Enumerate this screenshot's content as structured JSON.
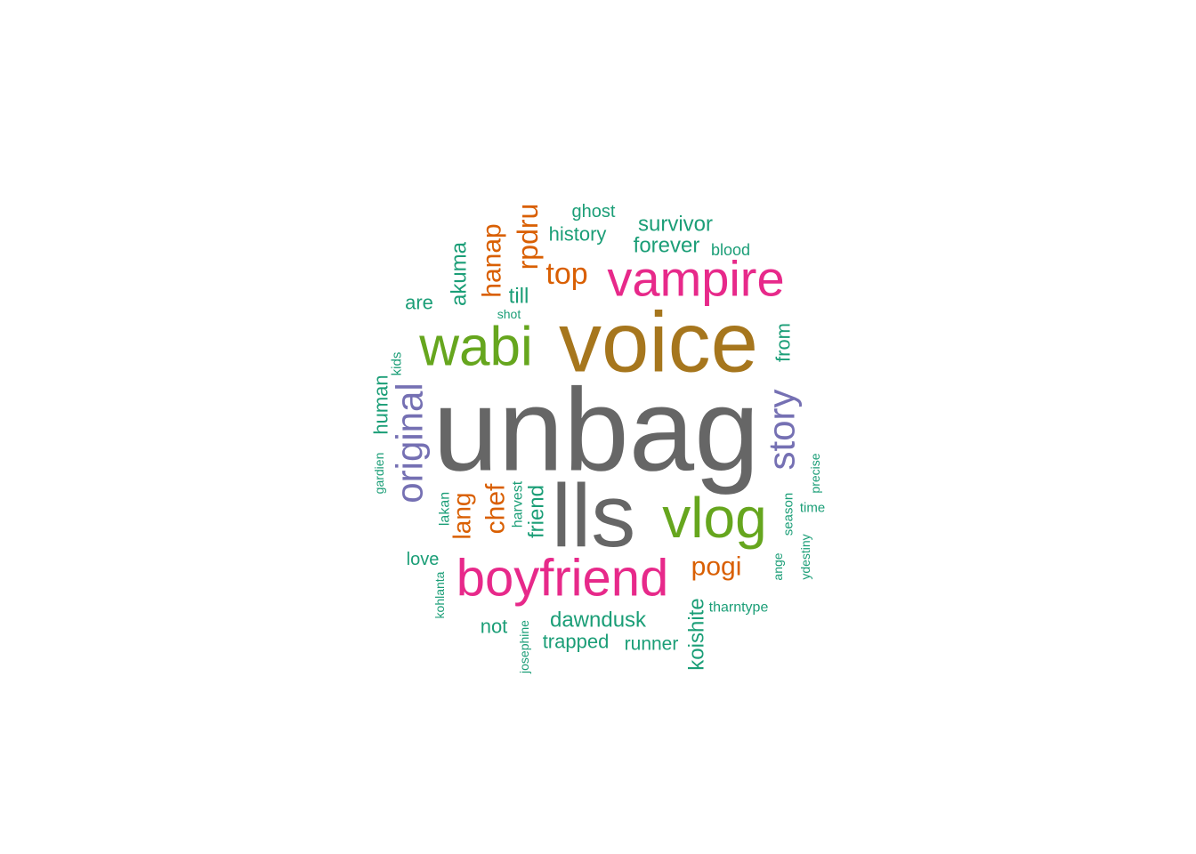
{
  "colors": {
    "gray": "#666666",
    "olive": "#A6761D",
    "green": "#66A61E",
    "pink": "#E7298A",
    "purple": "#7570B3",
    "orange": "#D95F02",
    "teal": "#1B9E77"
  },
  "words": [
    {
      "text": "unbag",
      "color": "gray"
    },
    {
      "text": "voice",
      "color": "olive"
    },
    {
      "text": "lls",
      "color": "gray"
    },
    {
      "text": "wabi",
      "color": "green"
    },
    {
      "text": "vlog",
      "color": "green"
    },
    {
      "text": "vampire",
      "color": "pink"
    },
    {
      "text": "boyfriend",
      "color": "pink"
    },
    {
      "text": "original",
      "color": "purple"
    },
    {
      "text": "story",
      "color": "purple"
    },
    {
      "text": "top",
      "color": "orange"
    },
    {
      "text": "pogi",
      "color": "orange"
    },
    {
      "text": "rpdru",
      "color": "orange"
    },
    {
      "text": "hanap",
      "color": "orange"
    },
    {
      "text": "chef",
      "color": "orange"
    },
    {
      "text": "lang",
      "color": "orange"
    },
    {
      "text": "akuma",
      "color": "teal"
    },
    {
      "text": "till",
      "color": "teal"
    },
    {
      "text": "shot",
      "color": "teal"
    },
    {
      "text": "are",
      "color": "teal"
    },
    {
      "text": "history",
      "color": "teal"
    },
    {
      "text": "ghost",
      "color": "teal"
    },
    {
      "text": "survivor",
      "color": "teal"
    },
    {
      "text": "forever",
      "color": "teal"
    },
    {
      "text": "blood",
      "color": "teal"
    },
    {
      "text": "from",
      "color": "teal"
    },
    {
      "text": "human",
      "color": "teal"
    },
    {
      "text": "kids",
      "color": "teal"
    },
    {
      "text": "gardien",
      "color": "teal"
    },
    {
      "text": "lakan",
      "color": "teal"
    },
    {
      "text": "harvest",
      "color": "teal"
    },
    {
      "text": "friend",
      "color": "teal"
    },
    {
      "text": "season",
      "color": "teal"
    },
    {
      "text": "precise",
      "color": "teal"
    },
    {
      "text": "time",
      "color": "teal"
    },
    {
      "text": "ydestiny",
      "color": "teal"
    },
    {
      "text": "ange",
      "color": "teal"
    },
    {
      "text": "love",
      "color": "teal"
    },
    {
      "text": "kohlanta",
      "color": "teal"
    },
    {
      "text": "not",
      "color": "teal"
    },
    {
      "text": "josephine",
      "color": "teal"
    },
    {
      "text": "dawndusk",
      "color": "teal"
    },
    {
      "text": "trapped",
      "color": "teal"
    },
    {
      "text": "runner",
      "color": "teal"
    },
    {
      "text": "koishite",
      "color": "teal"
    },
    {
      "text": "tharntype",
      "color": "teal"
    }
  ]
}
